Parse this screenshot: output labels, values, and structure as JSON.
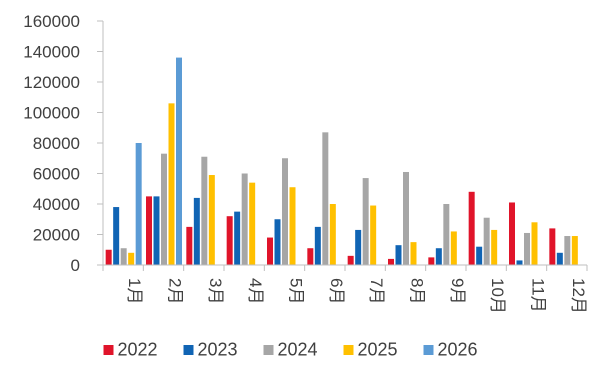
{
  "chart_data": {
    "type": "bar",
    "title": "",
    "xlabel": "",
    "ylabel": "",
    "ylim": [
      0,
      160000
    ],
    "yticks": [
      0,
      20000,
      40000,
      60000,
      80000,
      100000,
      120000,
      140000,
      160000
    ],
    "ytick_labels": [
      "0",
      "20000",
      "40000",
      "60000",
      "80000",
      "100000",
      "120000",
      "140000",
      "160000"
    ],
    "grid": false,
    "legend_position": "bottom",
    "categories": [
      "1月",
      "2月",
      "3月",
      "4月",
      "5月",
      "6月",
      "7月",
      "8月",
      "9月",
      "10月",
      "11月",
      "12月"
    ],
    "series": [
      {
        "name": "2022",
        "color": "#e0142a",
        "values": [
          10000,
          45000,
          25000,
          32000,
          18000,
          11000,
          6000,
          4000,
          5000,
          48000,
          41000,
          24000
        ]
      },
      {
        "name": "2023",
        "color": "#1064b4",
        "values": [
          38000,
          45000,
          44000,
          35000,
          30000,
          25000,
          23000,
          13000,
          11000,
          12000,
          3000,
          8000
        ]
      },
      {
        "name": "2024",
        "color": "#a6a6a6",
        "values": [
          11000,
          73000,
          71000,
          60000,
          70000,
          87000,
          57000,
          61000,
          40000,
          31000,
          21000,
          19000
        ]
      },
      {
        "name": "2025",
        "color": "#ffc000",
        "values": [
          8000,
          106000,
          59000,
          54000,
          51000,
          40000,
          39000,
          15000,
          22000,
          23000,
          28000,
          19000
        ]
      },
      {
        "name": "2026",
        "color": "#5b9bd5",
        "values": [
          80000,
          136000,
          null,
          null,
          null,
          null,
          null,
          null,
          null,
          null,
          null,
          null
        ]
      }
    ]
  }
}
